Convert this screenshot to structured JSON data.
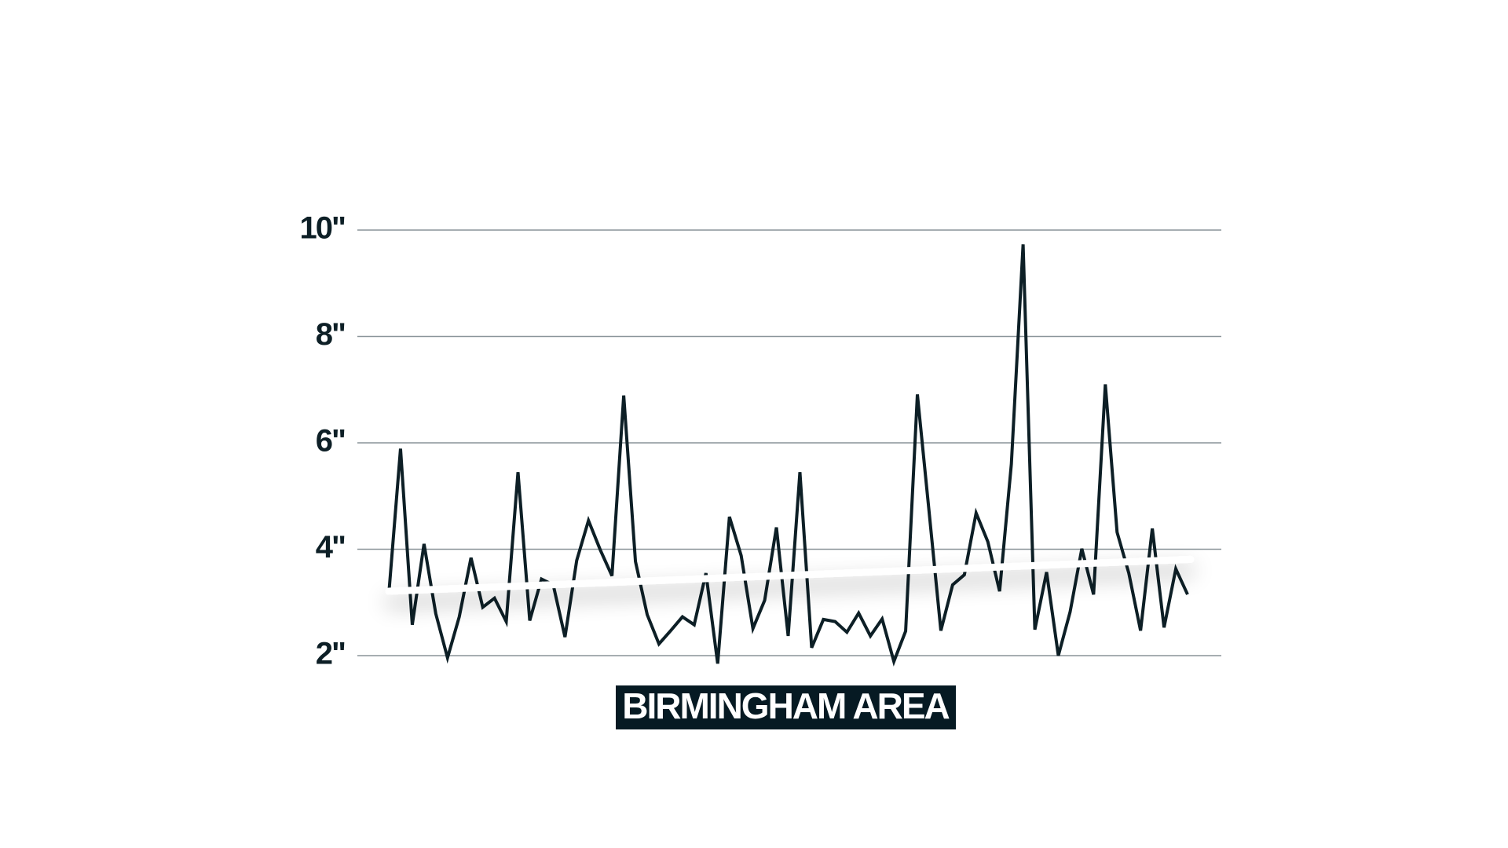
{
  "chart_data": {
    "type": "line",
    "values": [
      3.15,
      5.89,
      2.58,
      4.1,
      2.79,
      1.96,
      2.73,
      3.84,
      2.91,
      3.08,
      2.64,
      5.45,
      2.66,
      3.44,
      3.33,
      2.35,
      3.79,
      4.54,
      3.99,
      3.5,
      6.89,
      3.77,
      2.77,
      2.22,
      2.47,
      2.73,
      2.58,
      3.55,
      1.85,
      4.61,
      3.88,
      2.51,
      3.04,
      4.41,
      2.37,
      5.45,
      2.15,
      2.68,
      2.64,
      2.44,
      2.8,
      2.37,
      2.69,
      1.89,
      2.46,
      6.91,
      4.7,
      2.47,
      3.33,
      3.52,
      4.68,
      4.14,
      3.21,
      5.6,
      9.73,
      2.49,
      3.57,
      2.0,
      2.82,
      4.01,
      3.15,
      7.1,
      4.32,
      3.55,
      2.47,
      4.39,
      2.53,
      3.63,
      3.15
    ],
    "color": "#0d1f26",
    "trend": [
      3.21,
      3.81
    ],
    "trend_color": "#ffffff",
    "xlabel": "BIRMINGHAM AREA",
    "ylim": [
      2,
      10
    ],
    "yticks": [
      {
        "value": 2,
        "label": "2\""
      },
      {
        "value": 4,
        "label": "4\""
      },
      {
        "value": 6,
        "label": "6\""
      },
      {
        "value": 8,
        "label": "8\""
      },
      {
        "value": 10,
        "label": "10\""
      }
    ],
    "grid": true
  }
}
